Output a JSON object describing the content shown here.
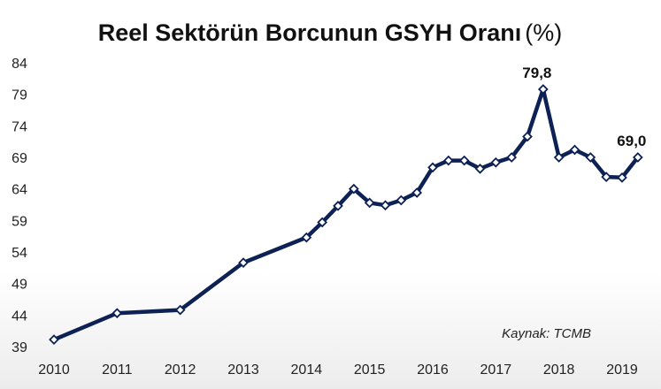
{
  "chart_data": {
    "type": "line",
    "title": "Reel Sektörün Borcunun GSYH Oranı",
    "title_unit": "(%)",
    "xlabel": "",
    "ylabel": "",
    "x_ticks": [
      "2010",
      "2011",
      "2012",
      "2013",
      "2014",
      "2015",
      "2016",
      "2017",
      "2018",
      "2019"
    ],
    "y_ticks": [
      "39",
      "44",
      "49",
      "54",
      "59",
      "64",
      "69",
      "74",
      "79",
      "84"
    ],
    "xlim": [
      2010,
      2019.3
    ],
    "ylim": [
      39,
      84
    ],
    "grid": false,
    "legend": "none",
    "line_color": "#0d2154",
    "marker": "diamond",
    "series": [
      {
        "x": [
          2010,
          2011,
          2012,
          2013,
          2014,
          2014.25,
          2014.5,
          2014.75,
          2015,
          2015.25,
          2015.5,
          2015.75,
          2016,
          2016.25,
          2016.5,
          2016.75,
          2017,
          2017.25,
          2017.5,
          2017.75,
          2018,
          2018.25,
          2018.5,
          2018.75,
          2019,
          2019.25
        ],
        "values": [
          40.1,
          44.3,
          44.8,
          52.3,
          56.3,
          58.7,
          61.3,
          64.0,
          61.8,
          61.4,
          62.2,
          63.4,
          67.4,
          68.5,
          68.5,
          67.2,
          68.2,
          69.0,
          72.3,
          79.8,
          69.0,
          70.2,
          69.0,
          65.9,
          65.8,
          69.0
        ]
      }
    ],
    "annotations": [
      {
        "text": "79,8",
        "x": 2017.75,
        "y": 79.8
      },
      {
        "text": "69,0",
        "x": 2019.25,
        "y": 69.0
      }
    ],
    "source": "Kaynak: TCMB"
  }
}
